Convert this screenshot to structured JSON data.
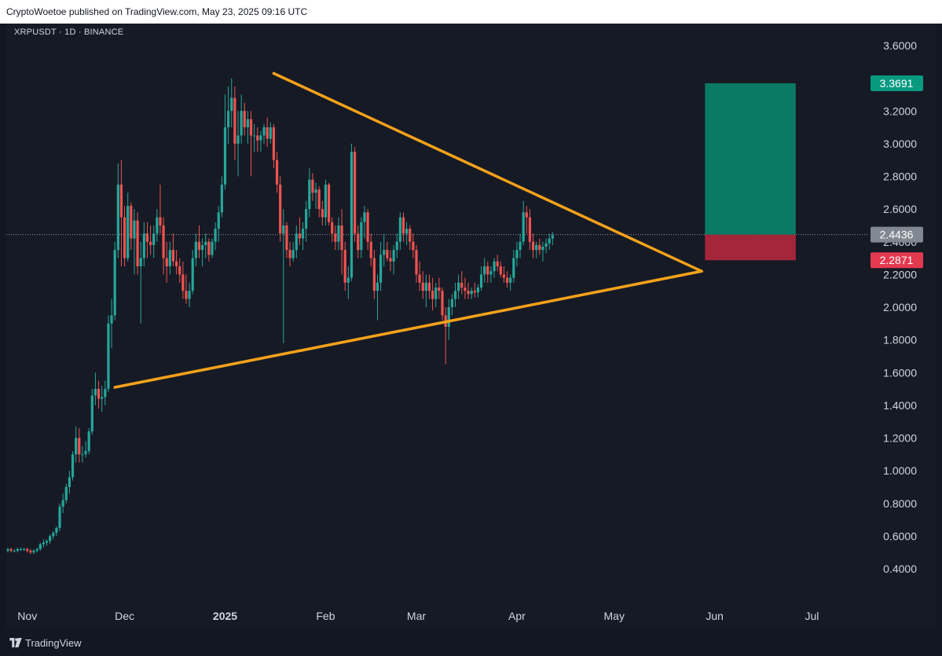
{
  "header": {
    "published_text": "CryptoWoetoe published on TradingView.com, May 23, 2025 09:16 UTC"
  },
  "symbol_label": "XRPUSDT · 1D · BINANCE",
  "footer": {
    "brand": "TradingView",
    "logo_icon": "tradingview-logo-icon"
  },
  "colors": {
    "up": "#26a69a",
    "down": "#ef5350",
    "trend": "#f7a21b",
    "target_zone": "#0b7a64",
    "stop_zone": "#a3263b",
    "price_tag": "#808891",
    "target_tag": "#089981",
    "stop_tag": "#e53950"
  },
  "chart_data": {
    "type": "candlestick",
    "title": "",
    "xlabel": "",
    "ylabel": "",
    "x_ticks": [
      {
        "label": "Nov",
        "date": "2024-11-01",
        "bold": false
      },
      {
        "label": "Dec",
        "date": "2024-12-01",
        "bold": false
      },
      {
        "label": "2025",
        "date": "2025-01-01",
        "bold": true
      },
      {
        "label": "Feb",
        "date": "2025-02-01",
        "bold": false
      },
      {
        "label": "Mar",
        "date": "2025-03-01",
        "bold": false
      },
      {
        "label": "Apr",
        "date": "2025-04-01",
        "bold": false
      },
      {
        "label": "May",
        "date": "2025-05-01",
        "bold": false
      },
      {
        "label": "Jun",
        "date": "2025-06-01",
        "bold": false
      },
      {
        "label": "Jul",
        "date": "2025-07-01",
        "bold": false
      }
    ],
    "y_ticks": [
      "3.6000",
      "3.2000",
      "3.0000",
      "2.8000",
      "2.6000",
      "2.4000",
      "2.2000",
      "2.0000",
      "1.8000",
      "1.6000",
      "1.4000",
      "1.2000",
      "1.0000",
      "0.8000",
      "0.6000",
      "0.4000"
    ],
    "ylim": [
      0.3,
      3.7
    ],
    "xlim": [
      "2024-10-26",
      "2025-07-13"
    ],
    "first_date": "2024-10-26",
    "candles_ohlc": [
      [
        0.51,
        0.53,
        0.5,
        0.52
      ],
      [
        0.52,
        0.53,
        0.5,
        0.51
      ],
      [
        0.51,
        0.52,
        0.5,
        0.51
      ],
      [
        0.51,
        0.53,
        0.5,
        0.52
      ],
      [
        0.52,
        0.53,
        0.51,
        0.52
      ],
      [
        0.52,
        0.53,
        0.51,
        0.52
      ],
      [
        0.52,
        0.53,
        0.5,
        0.51
      ],
      [
        0.51,
        0.52,
        0.49,
        0.5
      ],
      [
        0.5,
        0.52,
        0.49,
        0.51
      ],
      [
        0.51,
        0.53,
        0.5,
        0.52
      ],
      [
        0.52,
        0.56,
        0.51,
        0.55
      ],
      [
        0.55,
        0.58,
        0.53,
        0.56
      ],
      [
        0.56,
        0.58,
        0.54,
        0.57
      ],
      [
        0.57,
        0.61,
        0.55,
        0.6
      ],
      [
        0.6,
        0.63,
        0.58,
        0.62
      ],
      [
        0.62,
        0.66,
        0.6,
        0.65
      ],
      [
        0.65,
        0.8,
        0.63,
        0.78
      ],
      [
        0.78,
        0.86,
        0.74,
        0.82
      ],
      [
        0.82,
        0.92,
        0.8,
        0.9
      ],
      [
        0.9,
        1.0,
        0.86,
        0.96
      ],
      [
        0.96,
        1.12,
        0.94,
        1.1
      ],
      [
        1.1,
        1.27,
        1.05,
        1.2
      ],
      [
        1.2,
        1.26,
        1.05,
        1.1
      ],
      [
        1.1,
        1.15,
        1.05,
        1.1
      ],
      [
        1.1,
        1.18,
        1.08,
        1.12
      ],
      [
        1.12,
        1.26,
        1.1,
        1.24
      ],
      [
        1.24,
        1.5,
        1.22,
        1.46
      ],
      [
        1.46,
        1.6,
        1.4,
        1.5
      ],
      [
        1.5,
        1.55,
        1.38,
        1.44
      ],
      [
        1.44,
        1.52,
        1.36,
        1.45
      ],
      [
        1.45,
        1.55,
        1.4,
        1.5
      ],
      [
        1.5,
        1.95,
        1.48,
        1.9
      ],
      [
        1.9,
        2.05,
        1.75,
        1.95
      ],
      [
        1.95,
        2.4,
        1.92,
        2.35
      ],
      [
        2.35,
        2.88,
        2.3,
        2.75
      ],
      [
        2.75,
        2.9,
        2.25,
        2.55
      ],
      [
        2.55,
        2.62,
        2.25,
        2.3
      ],
      [
        2.3,
        2.7,
        2.28,
        2.62
      ],
      [
        2.62,
        2.64,
        2.35,
        2.42
      ],
      [
        2.42,
        2.6,
        2.2,
        2.53
      ],
      [
        2.53,
        2.58,
        2.2,
        2.25
      ],
      [
        2.25,
        2.4,
        1.9,
        2.3
      ],
      [
        2.3,
        2.52,
        2.25,
        2.45
      ],
      [
        2.45,
        2.52,
        2.3,
        2.4
      ],
      [
        2.4,
        2.5,
        2.32,
        2.38
      ],
      [
        2.38,
        2.5,
        2.3,
        2.45
      ],
      [
        2.45,
        2.6,
        2.4,
        2.55
      ],
      [
        2.55,
        2.75,
        2.45,
        2.5
      ],
      [
        2.5,
        2.55,
        2.2,
        2.3
      ],
      [
        2.3,
        2.4,
        2.15,
        2.25
      ],
      [
        2.25,
        2.4,
        2.2,
        2.35
      ],
      [
        2.35,
        2.45,
        2.25,
        2.28
      ],
      [
        2.28,
        2.35,
        2.2,
        2.25
      ],
      [
        2.25,
        2.3,
        2.15,
        2.2
      ],
      [
        2.2,
        2.28,
        2.05,
        2.1
      ],
      [
        2.1,
        2.2,
        2.02,
        2.05
      ],
      [
        2.05,
        2.15,
        2.0,
        2.1
      ],
      [
        2.1,
        2.35,
        2.08,
        2.3
      ],
      [
        2.3,
        2.45,
        2.25,
        2.4
      ],
      [
        2.4,
        2.5,
        2.3,
        2.35
      ],
      [
        2.35,
        2.42,
        2.25,
        2.38
      ],
      [
        2.38,
        2.45,
        2.3,
        2.4
      ],
      [
        2.4,
        2.42,
        2.28,
        2.32
      ],
      [
        2.32,
        2.42,
        2.3,
        2.4
      ],
      [
        2.4,
        2.52,
        2.35,
        2.48
      ],
      [
        2.48,
        2.62,
        2.4,
        2.58
      ],
      [
        2.58,
        2.8,
        2.55,
        2.75
      ],
      [
        2.75,
        3.3,
        2.72,
        3.1
      ],
      [
        3.1,
        3.35,
        3.0,
        3.2
      ],
      [
        3.2,
        3.4,
        3.1,
        3.28
      ],
      [
        3.28,
        3.35,
        2.9,
        3.0
      ],
      [
        3.0,
        3.2,
        2.8,
        3.05
      ],
      [
        3.05,
        3.3,
        3.0,
        3.2
      ],
      [
        3.2,
        3.25,
        3.05,
        3.1
      ],
      [
        3.1,
        3.2,
        3.0,
        3.15
      ],
      [
        3.15,
        3.2,
        2.8,
        3.05
      ],
      [
        3.05,
        3.12,
        2.95,
        3.05
      ],
      [
        3.05,
        3.1,
        2.95,
        3.02
      ],
      [
        3.02,
        3.08,
        2.95,
        3.05
      ],
      [
        3.05,
        3.12,
        3.0,
        3.1
      ],
      [
        3.1,
        3.16,
        2.98,
        3.03
      ],
      [
        3.03,
        3.13,
        3.0,
        3.1
      ],
      [
        3.1,
        3.12,
        2.85,
        2.9
      ],
      [
        2.9,
        2.95,
        2.7,
        2.75
      ],
      [
        2.75,
        2.8,
        2.4,
        2.45
      ],
      [
        2.45,
        2.6,
        1.78,
        2.5
      ],
      [
        2.5,
        2.52,
        2.3,
        2.35
      ],
      [
        2.35,
        2.4,
        2.25,
        2.3
      ],
      [
        2.3,
        2.4,
        2.28,
        2.35
      ],
      [
        2.35,
        2.5,
        2.3,
        2.45
      ],
      [
        2.45,
        2.55,
        2.38,
        2.42
      ],
      [
        2.42,
        2.52,
        2.35,
        2.48
      ],
      [
        2.48,
        2.65,
        2.4,
        2.6
      ],
      [
        2.6,
        2.85,
        2.55,
        2.78
      ],
      [
        2.78,
        2.82,
        2.65,
        2.7
      ],
      [
        2.7,
        2.76,
        2.6,
        2.72
      ],
      [
        2.72,
        2.74,
        2.55,
        2.6
      ],
      [
        2.6,
        2.65,
        2.5,
        2.55
      ],
      [
        2.55,
        2.78,
        2.5,
        2.75
      ],
      [
        2.75,
        2.76,
        2.5,
        2.52
      ],
      [
        2.52,
        2.55,
        2.4,
        2.45
      ],
      [
        2.45,
        2.5,
        2.35,
        2.4
      ],
      [
        2.4,
        2.55,
        2.35,
        2.5
      ],
      [
        2.5,
        2.6,
        2.2,
        2.35
      ],
      [
        2.35,
        2.4,
        2.1,
        2.15
      ],
      [
        2.15,
        2.25,
        2.05,
        2.18
      ],
      [
        2.18,
        3.0,
        2.16,
        2.95
      ],
      [
        2.95,
        2.98,
        2.4,
        2.45
      ],
      [
        2.45,
        2.5,
        2.3,
        2.35
      ],
      [
        2.35,
        2.55,
        2.3,
        2.52
      ],
      [
        2.52,
        2.62,
        2.42,
        2.58
      ],
      [
        2.58,
        2.6,
        2.35,
        2.4
      ],
      [
        2.4,
        2.45,
        2.25,
        2.3
      ],
      [
        2.3,
        2.35,
        2.05,
        2.1
      ],
      [
        2.1,
        2.2,
        1.92,
        2.15
      ],
      [
        2.15,
        2.4,
        2.1,
        2.32
      ],
      [
        2.32,
        2.45,
        2.25,
        2.35
      ],
      [
        2.35,
        2.4,
        2.28,
        2.3
      ],
      [
        2.3,
        2.35,
        2.22,
        2.28
      ],
      [
        2.28,
        2.38,
        2.2,
        2.35
      ],
      [
        2.35,
        2.45,
        2.3,
        2.4
      ],
      [
        2.4,
        2.58,
        2.35,
        2.55
      ],
      [
        2.55,
        2.58,
        2.4,
        2.45
      ],
      [
        2.45,
        2.52,
        2.38,
        2.48
      ],
      [
        2.48,
        2.5,
        2.35,
        2.4
      ],
      [
        2.4,
        2.45,
        2.3,
        2.35
      ],
      [
        2.35,
        2.38,
        2.15,
        2.2
      ],
      [
        2.2,
        2.28,
        2.1,
        2.15
      ],
      [
        2.15,
        2.22,
        2.05,
        2.1
      ],
      [
        2.1,
        2.2,
        2.0,
        2.15
      ],
      [
        2.15,
        2.2,
        2.05,
        2.1
      ],
      [
        2.1,
        2.18,
        1.98,
        2.05
      ],
      [
        2.05,
        2.15,
        2.0,
        2.12
      ],
      [
        2.12,
        2.18,
        2.05,
        2.1
      ],
      [
        2.1,
        2.12,
        1.92,
        1.95
      ],
      [
        1.95,
        2.0,
        1.65,
        1.88
      ],
      [
        1.88,
        2.05,
        1.8,
        2.0
      ],
      [
        2.0,
        2.08,
        1.95,
        2.05
      ],
      [
        2.05,
        2.15,
        2.0,
        2.1
      ],
      [
        2.1,
        2.2,
        2.05,
        2.15
      ],
      [
        2.15,
        2.22,
        2.08,
        2.12
      ],
      [
        2.12,
        2.18,
        2.05,
        2.1
      ],
      [
        2.1,
        2.15,
        2.05,
        2.08
      ],
      [
        2.08,
        2.12,
        2.05,
        2.1
      ],
      [
        2.1,
        2.15,
        2.06,
        2.09
      ],
      [
        2.09,
        2.14,
        2.06,
        2.12
      ],
      [
        2.12,
        2.25,
        2.1,
        2.2
      ],
      [
        2.2,
        2.3,
        2.15,
        2.25
      ],
      [
        2.25,
        2.28,
        2.15,
        2.2
      ],
      [
        2.2,
        2.25,
        2.15,
        2.22
      ],
      [
        2.22,
        2.3,
        2.18,
        2.28
      ],
      [
        2.28,
        2.32,
        2.22,
        2.25
      ],
      [
        2.25,
        2.28,
        2.18,
        2.2
      ],
      [
        2.2,
        2.25,
        2.15,
        2.18
      ],
      [
        2.18,
        2.22,
        2.12,
        2.15
      ],
      [
        2.15,
        2.2,
        2.1,
        2.18
      ],
      [
        2.18,
        2.35,
        2.15,
        2.3
      ],
      [
        2.3,
        2.4,
        2.25,
        2.35
      ],
      [
        2.35,
        2.45,
        2.3,
        2.4
      ],
      [
        2.4,
        2.65,
        2.38,
        2.58
      ],
      [
        2.58,
        2.62,
        2.45,
        2.55
      ],
      [
        2.55,
        2.6,
        2.35,
        2.4
      ],
      [
        2.4,
        2.45,
        2.3,
        2.35
      ],
      [
        2.35,
        2.4,
        2.3,
        2.38
      ],
      [
        2.38,
        2.42,
        2.32,
        2.35
      ],
      [
        2.35,
        2.4,
        2.28,
        2.37
      ],
      [
        2.37,
        2.42,
        2.33,
        2.39
      ],
      [
        2.39,
        2.45,
        2.35,
        2.42
      ],
      [
        2.42,
        2.46,
        2.38,
        2.44
      ]
    ],
    "trendlines": [
      {
        "name": "upper",
        "points": [
          [
            "2025-01-16",
            3.43
          ],
          [
            "2025-05-28",
            2.22
          ]
        ]
      },
      {
        "name": "lower",
        "points": [
          [
            "2024-11-28",
            1.51
          ],
          [
            "2025-05-28",
            2.22
          ]
        ]
      }
    ],
    "position": {
      "start": "2025-05-29",
      "end": "2025-06-26",
      "target": 3.3691,
      "entry": 2.4436,
      "stop": 2.2871
    },
    "price_labels": {
      "current": "2.4436",
      "target": "3.3691",
      "stop": "2.2871"
    }
  }
}
